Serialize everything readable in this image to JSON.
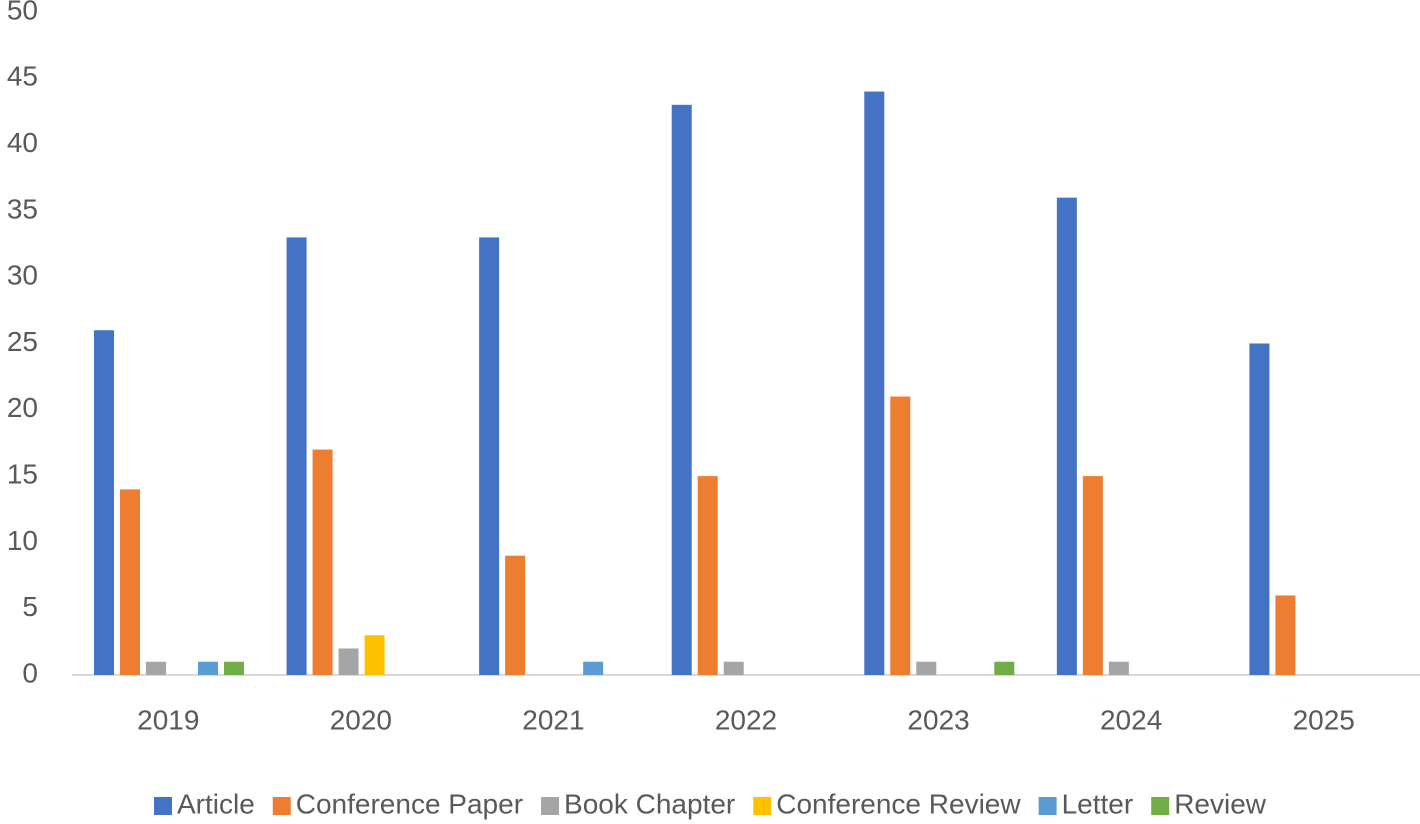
{
  "chart_data": {
    "type": "bar",
    "categories": [
      "2019",
      "2020",
      "2021",
      "2022",
      "2023",
      "2024",
      "2025"
    ],
    "series": [
      {
        "name": "Article",
        "color": "#4472c4",
        "values": [
          26,
          33,
          33,
          43,
          44,
          36,
          25
        ]
      },
      {
        "name": "Conference Paper",
        "color": "#ed7d31",
        "values": [
          14,
          17,
          9,
          15,
          21,
          15,
          6
        ]
      },
      {
        "name": "Book Chapter",
        "color": "#a5a5a5",
        "values": [
          1,
          2,
          0,
          1,
          1,
          1,
          0
        ]
      },
      {
        "name": "Conference Review",
        "color": "#ffc000",
        "values": [
          0,
          3,
          0,
          0,
          0,
          0,
          0
        ]
      },
      {
        "name": "Letter",
        "color": "#5b9bd5",
        "values": [
          1,
          0,
          1,
          0,
          0,
          0,
          0
        ]
      },
      {
        "name": "Review",
        "color": "#70ad47",
        "values": [
          1,
          0,
          0,
          0,
          1,
          0,
          0
        ]
      }
    ],
    "ylim": [
      0,
      50
    ],
    "yticks": [
      0,
      5,
      10,
      15,
      20,
      25,
      30,
      35,
      40,
      45,
      50
    ],
    "grid": false,
    "legend": "bottom"
  }
}
